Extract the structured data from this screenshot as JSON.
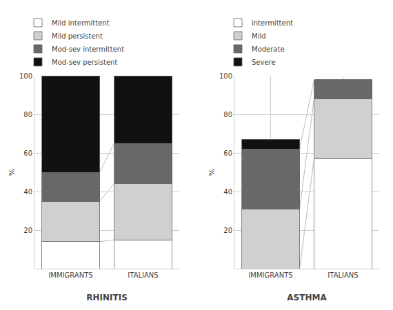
{
  "chart_data": [
    {
      "type": "bar",
      "stacked": true,
      "xlabel": "RHINITIS",
      "ylabel": "%",
      "categories": [
        "IMMIGRANTS",
        "ITALIANS"
      ],
      "series": [
        {
          "name": "Mild intermittent",
          "color": "#ffffff",
          "values": [
            14,
            15
          ]
        },
        {
          "name": "Mild persistent",
          "color": "#d0d0d0",
          "values": [
            21,
            29
          ]
        },
        {
          "name": "Mod-sev intermittent",
          "color": "#686868",
          "values": [
            15,
            21
          ]
        },
        {
          "name": "Mod-sev persistent",
          "color": "#111111",
          "values": [
            50,
            35
          ]
        }
      ],
      "ylim": [
        0,
        100
      ],
      "yticks": [
        20,
        40,
        60,
        80,
        100
      ],
      "grid": true,
      "legend": "top"
    },
    {
      "type": "bar",
      "stacked": true,
      "xlabel": "ASTHMA",
      "ylabel": "%",
      "categories": [
        "IMMIGRANTS",
        "ITALIANS"
      ],
      "series": [
        {
          "name": "intermittent",
          "color": "#ffffff",
          "values": [
            0,
            57
          ]
        },
        {
          "name": "Mild",
          "color": "#d0d0d0",
          "values": [
            31,
            31
          ]
        },
        {
          "name": "Moderate",
          "color": "#686868",
          "values": [
            31,
            10
          ]
        },
        {
          "name": "Severe",
          "color": "#111111",
          "values": [
            5,
            0
          ]
        }
      ],
      "ylim": [
        0,
        100
      ],
      "yticks": [
        20,
        40,
        60,
        80,
        100
      ],
      "grid": true,
      "legend": "top"
    }
  ]
}
